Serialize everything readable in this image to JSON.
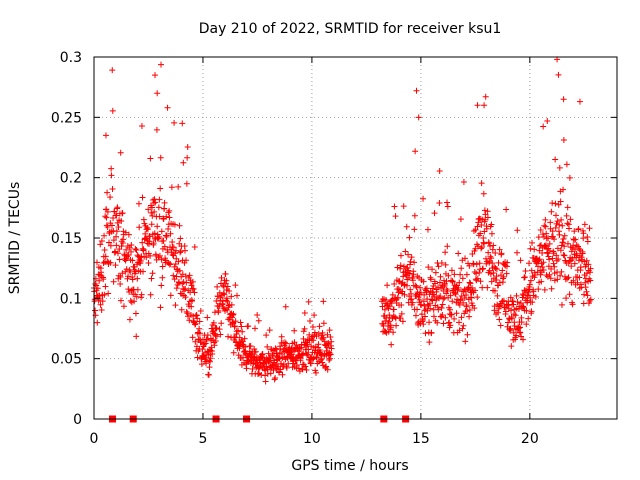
{
  "chart_data": {
    "type": "scatter",
    "title": "Day 210 of 2022, SRMTID for receiver ksu1",
    "xlabel": "GPS time / hours",
    "ylabel": "SRMTID / TECUs",
    "xlim": [
      0,
      24
    ],
    "ylim": [
      0,
      0.3
    ],
    "xticks": [
      0,
      5,
      10,
      15,
      20
    ],
    "yticks": [
      0,
      0.05,
      0.1,
      0.15,
      0.2,
      0.25,
      0.3
    ],
    "xtick_labels": [
      "0",
      "5",
      "10",
      "15",
      "20"
    ],
    "ytick_labels": [
      "0",
      "0.05",
      "0.1",
      "0.15",
      "0.2",
      "0.25",
      "0.3"
    ],
    "grid": true,
    "marker": "+",
    "color": "#ff0000",
    "gap_hours": [
      10.9,
      13.2
    ],
    "zero_markers_x": [
      0.85,
      1.8,
      5.6,
      7.0,
      13.3,
      14.3
    ],
    "series": [
      {
        "name": "SRMTID",
        "profile": [
          [
            0.0,
            0.095
          ],
          [
            0.3,
            0.11
          ],
          [
            0.6,
            0.15
          ],
          [
            0.9,
            0.16
          ],
          [
            1.3,
            0.135
          ],
          [
            1.7,
            0.115
          ],
          [
            2.1,
            0.13
          ],
          [
            2.5,
            0.15
          ],
          [
            2.9,
            0.16
          ],
          [
            3.3,
            0.15
          ],
          [
            3.7,
            0.135
          ],
          [
            4.1,
            0.12
          ],
          [
            4.5,
            0.095
          ],
          [
            4.9,
            0.06
          ],
          [
            5.3,
            0.05
          ],
          [
            5.7,
            0.09
          ],
          [
            6.1,
            0.1
          ],
          [
            6.5,
            0.065
          ],
          [
            6.9,
            0.055
          ],
          [
            7.3,
            0.05
          ],
          [
            7.8,
            0.045
          ],
          [
            8.3,
            0.048
          ],
          [
            8.8,
            0.05
          ],
          [
            9.3,
            0.055
          ],
          [
            9.8,
            0.055
          ],
          [
            10.3,
            0.058
          ],
          [
            10.9,
            0.06
          ],
          [
            13.2,
            0.09
          ],
          [
            13.6,
            0.08
          ],
          [
            14.0,
            0.11
          ],
          [
            14.5,
            0.12
          ],
          [
            15.0,
            0.095
          ],
          [
            15.5,
            0.1
          ],
          [
            16.0,
            0.11
          ],
          [
            16.5,
            0.095
          ],
          [
            17.0,
            0.1
          ],
          [
            17.5,
            0.12
          ],
          [
            17.8,
            0.16
          ],
          [
            18.2,
            0.13
          ],
          [
            18.6,
            0.11
          ],
          [
            19.0,
            0.095
          ],
          [
            19.5,
            0.08
          ],
          [
            20.0,
            0.11
          ],
          [
            20.5,
            0.13
          ],
          [
            21.0,
            0.14
          ],
          [
            21.5,
            0.15
          ],
          [
            22.0,
            0.13
          ],
          [
            22.5,
            0.12
          ],
          [
            22.8,
            0.11
          ]
        ],
        "notable_points": [
          [
            0.55,
            0.235
          ],
          [
            2.8,
            0.285
          ],
          [
            2.9,
            0.27
          ],
          [
            4.05,
            0.245
          ],
          [
            14.8,
            0.272
          ],
          [
            14.9,
            0.25
          ],
          [
            17.6,
            0.26
          ],
          [
            17.9,
            0.26
          ],
          [
            20.8,
            0.247
          ],
          [
            21.25,
            0.298
          ],
          [
            21.55,
            0.265
          ],
          [
            22.3,
            0.263
          ]
        ]
      }
    ]
  }
}
